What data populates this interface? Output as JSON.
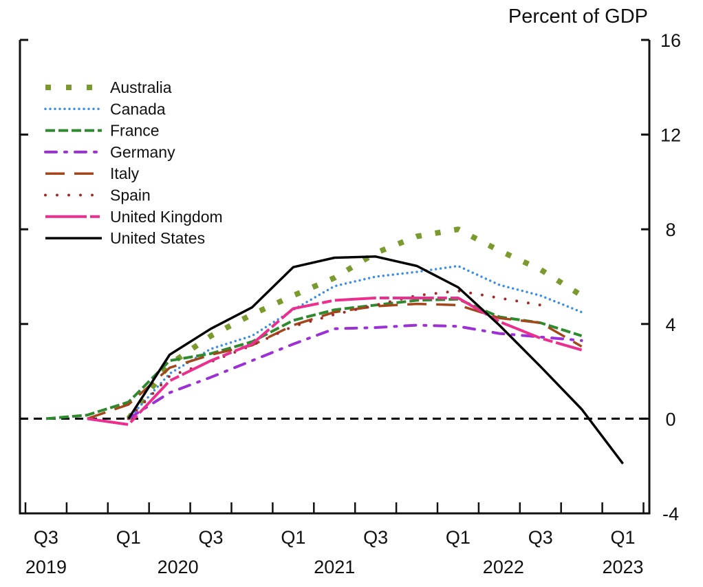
{
  "chart_data": {
    "type": "line",
    "title": "",
    "unit_label": "Percent of GDP",
    "xlabel": "",
    "ylabel": "Percent of GDP",
    "ylim": [
      -4,
      16
    ],
    "yticks": [
      16,
      12,
      8,
      4,
      0,
      -4
    ],
    "ytick_labels": [
      "16",
      "12",
      "8",
      "4",
      "0",
      "-4"
    ],
    "y_axis_side": "right",
    "reference_line": {
      "y": 0,
      "style": "dashed",
      "color": "#000000"
    },
    "x": [
      "Q3 2019",
      "Q4 2019",
      "Q1 2020",
      "Q2 2020",
      "Q3 2020",
      "Q4 2020",
      "Q1 2021",
      "Q2 2021",
      "Q3 2021",
      "Q4 2021",
      "Q1 2022",
      "Q2 2022",
      "Q3 2022",
      "Q4 2022",
      "Q1 2023"
    ],
    "xtick_labels": [
      {
        "quarter": "Q3",
        "year": "2019",
        "index": 0
      },
      {
        "quarter": "Q1",
        "year": "",
        "index": 2
      },
      {
        "quarter": "Q3",
        "year": "2020",
        "index": 4
      },
      {
        "quarter": "Q1",
        "year": "",
        "index": 6
      },
      {
        "quarter": "Q3",
        "year": "2021",
        "index": 8
      },
      {
        "quarter": "Q1",
        "year": "",
        "index": 10
      },
      {
        "quarter": "Q3",
        "year": "2022",
        "index": 12
      },
      {
        "quarter": "Q1",
        "year": "2023",
        "index": 14
      }
    ],
    "year_labels": [
      {
        "label": "2019",
        "center_index": 0
      },
      {
        "label": "2020",
        "center_index": 3.2
      },
      {
        "label": "2021",
        "center_index": 7.0
      },
      {
        "label": "2022",
        "center_index": 11.1
      },
      {
        "label": "2023",
        "center_index": 14
      }
    ],
    "legend_position": "top-left",
    "grid": false,
    "series": [
      {
        "name": "Australia",
        "color": "#7a9a2e",
        "style": "square-dot",
        "values": [
          null,
          null,
          0,
          2.3,
          3.5,
          4.4,
          5.2,
          5.95,
          7.0,
          7.7,
          8.0,
          7.1,
          6.3,
          5.2,
          null
        ]
      },
      {
        "name": "Canada",
        "color": "#3a8ee6",
        "style": "dot",
        "values": [
          null,
          null,
          0,
          1.9,
          2.95,
          3.5,
          4.6,
          5.6,
          6.0,
          6.2,
          6.45,
          5.65,
          5.2,
          4.5,
          null
        ]
      },
      {
        "name": "France",
        "color": "#2f8a2f",
        "style": "dash",
        "values": [
          0,
          0.15,
          0.7,
          2.45,
          2.75,
          3.25,
          4.15,
          4.6,
          4.8,
          5.0,
          5.05,
          4.3,
          4.05,
          3.5,
          null
        ]
      },
      {
        "name": "Germany",
        "color": "#9b30d4",
        "style": "dash-dot",
        "values": [
          null,
          null,
          0,
          1.1,
          1.75,
          2.45,
          3.15,
          3.8,
          3.85,
          3.95,
          3.9,
          3.6,
          3.45,
          3.3,
          null
        ]
      },
      {
        "name": "Italy",
        "color": "#a3461c",
        "style": "long-dash",
        "values": [
          null,
          0,
          0.6,
          2.15,
          2.7,
          3.1,
          3.95,
          4.5,
          4.75,
          4.85,
          4.8,
          4.25,
          4.05,
          3.05,
          null
        ]
      },
      {
        "name": "Spain",
        "color": "#a32a2a",
        "style": "sparse-dot",
        "values": [
          null,
          null,
          0,
          1.8,
          2.4,
          3.1,
          3.9,
          4.4,
          4.8,
          5.2,
          5.4,
          5.1,
          4.8,
          null,
          null
        ]
      },
      {
        "name": "United Kingdom",
        "color": "#ea2f8f",
        "style": "long-dash-short",
        "values": [
          null,
          0,
          -0.25,
          1.6,
          2.45,
          3.15,
          4.65,
          5.0,
          5.1,
          5.1,
          5.1,
          4.1,
          3.4,
          2.9,
          null
        ]
      },
      {
        "name": "United States",
        "color": "#000000",
        "style": "solid",
        "values": [
          null,
          null,
          0,
          2.7,
          3.8,
          4.7,
          6.4,
          6.8,
          6.85,
          6.45,
          5.55,
          3.95,
          2.2,
          0.4,
          -1.9
        ]
      }
    ]
  }
}
